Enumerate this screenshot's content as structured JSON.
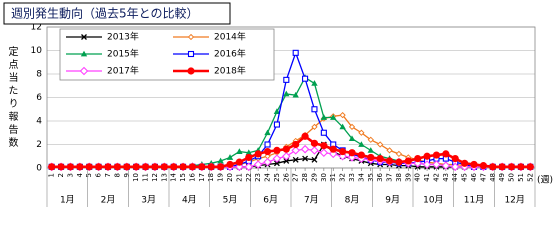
{
  "chart_data": {
    "type": "line",
    "title": "週別発生動向（過去5年との比較）",
    "y_label": "定点当たり報告数",
    "x_unit": "(週)",
    "categories": [
      "1",
      "2",
      "3",
      "4",
      "5",
      "6",
      "7",
      "8",
      "9",
      "10",
      "11",
      "12",
      "13",
      "14",
      "15",
      "16",
      "17",
      "18",
      "19",
      "20",
      "21",
      "22",
      "23",
      "24",
      "25",
      "26",
      "27",
      "28",
      "29",
      "30",
      "31",
      "32",
      "33",
      "34",
      "35",
      "36",
      "37",
      "38",
      "39",
      "40",
      "41",
      "42",
      "43",
      "44",
      "45",
      "46",
      "47",
      "48",
      "49",
      "50",
      "51",
      "52"
    ],
    "months": [
      "1月",
      "2月",
      "3月",
      "4月",
      "5月",
      "6月",
      "7月",
      "8月",
      "9月",
      "10月",
      "11月",
      "12月"
    ],
    "ylim": [
      0,
      12
    ],
    "yticks": [
      0,
      2,
      4,
      6,
      8,
      10,
      12
    ],
    "grid": true,
    "series": [
      {
        "name": "2013年",
        "color": "#000000",
        "marker": "x",
        "values": [
          0.1,
          0.1,
          0.1,
          0.1,
          0.1,
          0.1,
          0.1,
          0.1,
          0.1,
          0.1,
          0.1,
          0.1,
          0.1,
          0.1,
          0.1,
          0.1,
          0.1,
          0.1,
          0.1,
          0.1,
          0.1,
          0.1,
          0.2,
          0.3,
          0.4,
          0.6,
          0.7,
          0.8,
          0.7,
          2.0,
          1.4,
          1.0,
          0.8,
          0.6,
          0.4,
          0.3,
          0.3,
          0.2,
          0.2,
          0.1,
          0.1,
          0.1,
          0.1,
          0.1,
          0.1,
          0.1,
          0.1,
          0.1,
          0.1,
          0.1,
          0.1,
          0.1
        ]
      },
      {
        "name": "2014年",
        "color": "#f07a20",
        "marker": "small-diamond",
        "values": [
          0.1,
          0.1,
          0.1,
          0.1,
          0.1,
          0.1,
          0.1,
          0.1,
          0.1,
          0.1,
          0.1,
          0.1,
          0.1,
          0.1,
          0.1,
          0.1,
          0.1,
          0.1,
          0.1,
          0.1,
          0.3,
          0.5,
          0.8,
          1.0,
          1.3,
          1.8,
          2.3,
          2.8,
          3.5,
          4.2,
          4.4,
          4.5,
          3.5,
          3.0,
          2.4,
          2.0,
          1.5,
          1.2,
          0.9,
          0.7,
          0.5,
          0.4,
          0.3,
          0.3,
          0.2,
          0.1,
          0.1,
          0.1,
          0.1,
          0.1,
          0.1,
          0.1
        ]
      },
      {
        "name": "2015年",
        "color": "#00a050",
        "marker": "triangle",
        "values": [
          0.1,
          0.1,
          0.1,
          0.1,
          0.1,
          0.1,
          0.1,
          0.1,
          0.1,
          0.1,
          0.1,
          0.1,
          0.1,
          0.1,
          0.1,
          0.2,
          0.3,
          0.4,
          0.6,
          0.9,
          1.4,
          1.3,
          1.5,
          3.0,
          4.8,
          6.3,
          6.2,
          7.7,
          7.2,
          4.3,
          4.3,
          3.5,
          2.5,
          2.0,
          1.5,
          1.0,
          0.8,
          0.6,
          0.5,
          0.4,
          0.3,
          0.3,
          0.2,
          0.1,
          0.1,
          0.1,
          0.1,
          0.1,
          0.1,
          0.1,
          0.1,
          0.1
        ]
      },
      {
        "name": "2016年",
        "color": "#0000ff",
        "marker": "square",
        "values": [
          0.1,
          0.1,
          0.1,
          0.1,
          0.1,
          0.1,
          0.1,
          0.1,
          0.1,
          0.1,
          0.1,
          0.1,
          0.1,
          0.1,
          0.1,
          0.1,
          0.1,
          0.1,
          0.1,
          0.1,
          0.3,
          0.6,
          1.0,
          2.0,
          3.7,
          7.5,
          9.8,
          7.6,
          5.0,
          3.0,
          2.0,
          1.5,
          1.2,
          0.9,
          0.7,
          0.5,
          0.5,
          0.4,
          0.4,
          0.5,
          0.6,
          0.8,
          0.8,
          0.5,
          0.3,
          0.1,
          0.1,
          0.1,
          0.1,
          0.1,
          0.1,
          0.1
        ]
      },
      {
        "name": "2017年",
        "color": "#ff40ff",
        "marker": "diamond",
        "values": [
          0.1,
          0.1,
          0.1,
          0.1,
          0.1,
          0.1,
          0.1,
          0.1,
          0.1,
          0.1,
          0.1,
          0.1,
          0.1,
          0.1,
          0.1,
          0.1,
          0.1,
          0.1,
          0.1,
          0.1,
          0.1,
          0.1,
          0.3,
          0.5,
          0.8,
          1.0,
          1.5,
          1.6,
          1.5,
          1.3,
          1.2,
          1.0,
          0.9,
          0.8,
          0.7,
          0.6,
          0.5,
          0.5,
          0.4,
          0.4,
          0.3,
          0.3,
          0.2,
          0.1,
          0.1,
          0.1,
          0.1,
          0.1,
          0.1,
          0.1,
          0.1,
          0.1
        ]
      },
      {
        "name": "2018年",
        "color": "#ff0000",
        "marker": "circle",
        "values": [
          0.1,
          0.1,
          0.1,
          0.1,
          0.1,
          0.1,
          0.1,
          0.1,
          0.1,
          0.1,
          0.1,
          0.1,
          0.1,
          0.1,
          0.1,
          0.1,
          0.1,
          0.1,
          0.1,
          0.3,
          0.5,
          0.9,
          1.2,
          1.4,
          1.5,
          1.6,
          2.0,
          2.7,
          2.1,
          1.9,
          1.6,
          1.4,
          1.3,
          1.1,
          0.9,
          0.8,
          0.6,
          0.5,
          0.6,
          0.8,
          1.0,
          1.1,
          1.2,
          0.8,
          0.4,
          0.3,
          0.2,
          0.1,
          0.1,
          0.1,
          0.1,
          0.1
        ]
      }
    ]
  }
}
